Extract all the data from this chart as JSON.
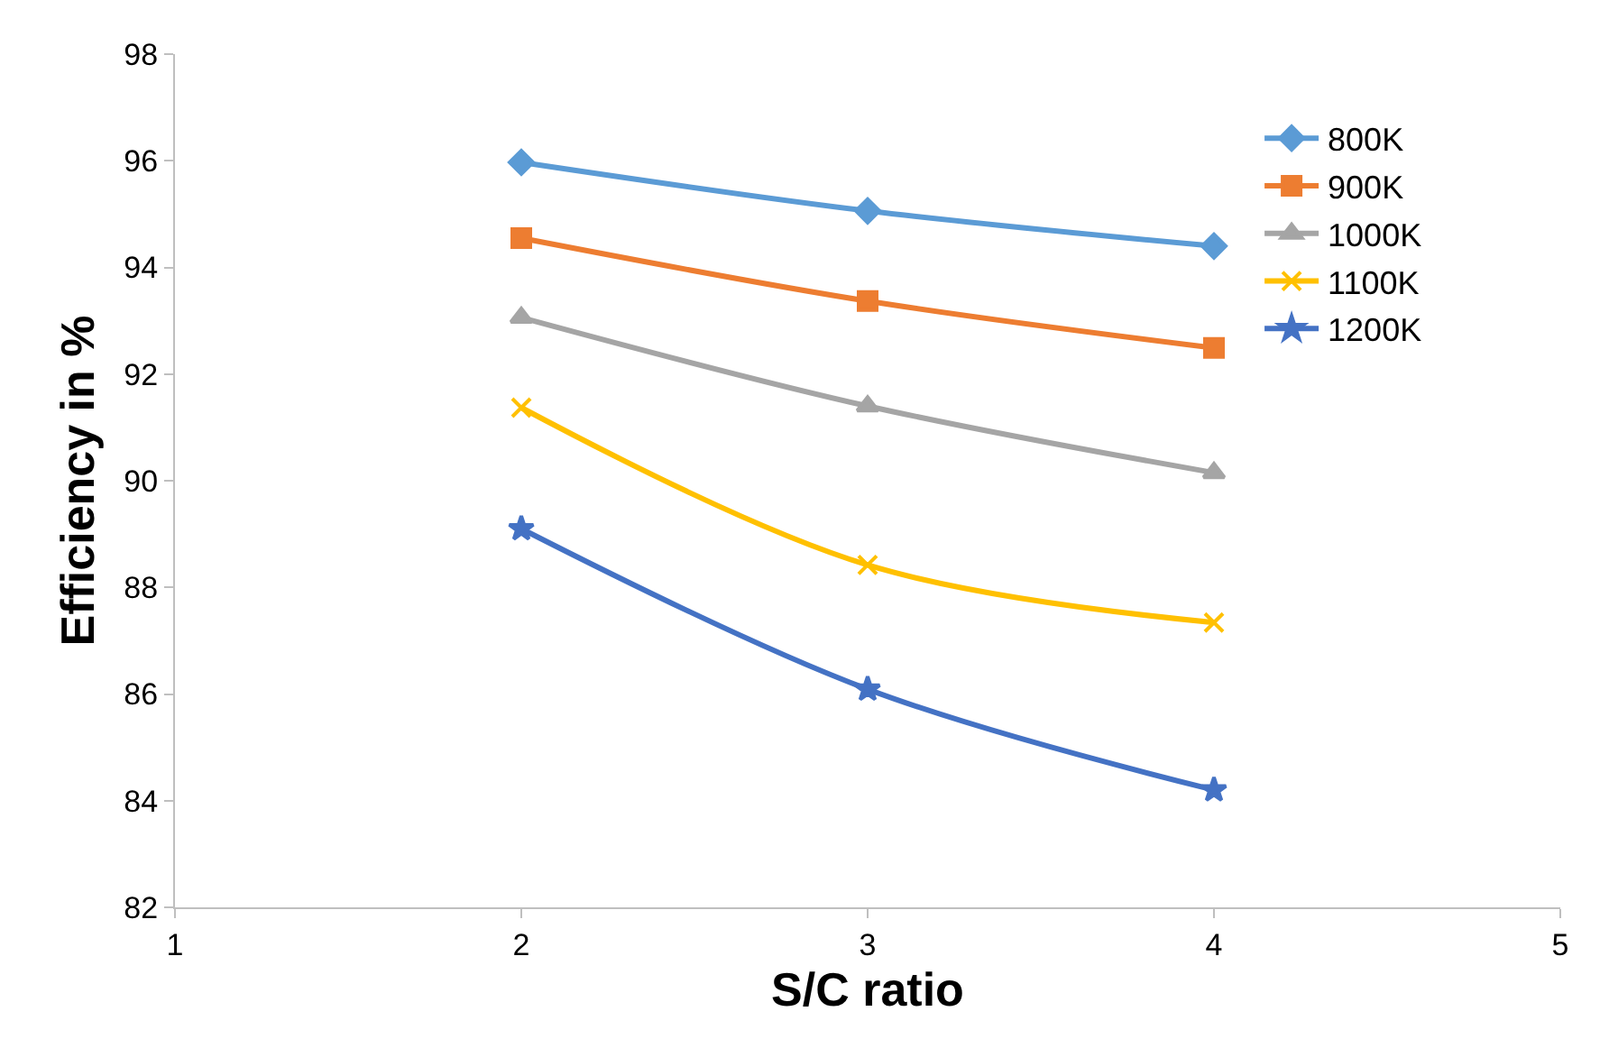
{
  "chart_data": {
    "type": "line",
    "xlabel": "S/C ratio",
    "ylabel": "Efficiency in %",
    "x": [
      2,
      3,
      4
    ],
    "xlim": [
      1,
      5
    ],
    "xticks": [
      1,
      2,
      3,
      4,
      5
    ],
    "ylim": [
      82,
      98
    ],
    "yticks": [
      82,
      84,
      86,
      88,
      90,
      92,
      94,
      96,
      98
    ],
    "legend": "top right",
    "series": [
      {
        "name": "800K",
        "color": "#5b9bd5",
        "marker": "diamond",
        "values": [
          95.97,
          95.06,
          94.4
        ]
      },
      {
        "name": "900K",
        "color": "#ed7d31",
        "marker": "square",
        "values": [
          94.55,
          93.37,
          92.49
        ]
      },
      {
        "name": "1000K",
        "color": "#a5a5a5",
        "marker": "triangle",
        "values": [
          93.06,
          91.4,
          90.15
        ]
      },
      {
        "name": "1100K",
        "color": "#ffc000",
        "marker": "cross",
        "values": [
          91.37,
          88.42,
          87.34
        ]
      },
      {
        "name": "1200K",
        "color": "#4472c4",
        "marker": "star",
        "values": [
          89.1,
          86.09,
          84.2
        ]
      }
    ]
  }
}
